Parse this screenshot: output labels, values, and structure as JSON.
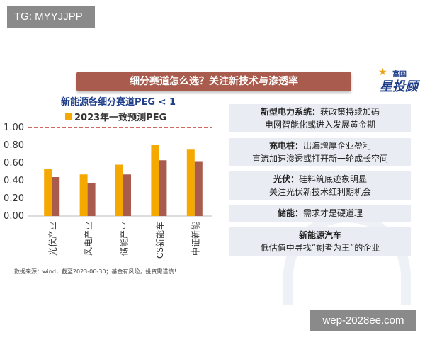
{
  "watermark_top": "TG: MYYJJPP",
  "watermark_bottom": "wep-2028ee.com",
  "banner_title": "细分赛道怎么选？关注新技术与渗透率",
  "logo": {
    "small": "富国",
    "main": "星投顾"
  },
  "chart_data": {
    "type": "bar",
    "title": "新能源各细分赛道PEG < 1",
    "categories": [
      "光伏产业",
      "风电产业",
      "储能产业",
      "CS新能车",
      "中证新能"
    ],
    "series": [
      {
        "name": "2023年一致预测PEG",
        "values": [
          0.53,
          0.47,
          0.58,
          0.8,
          0.75
        ],
        "color": "#f5a800"
      },
      {
        "values": [
          0.44,
          0.37,
          0.47,
          0.63,
          0.62
        ],
        "color": "#a95c4d"
      }
    ],
    "ylim": [
      0,
      1.0
    ],
    "yticks": [
      "0.00",
      "0.20",
      "0.40",
      "0.60",
      "0.80",
      "1.00"
    ],
    "reference_line": 1.0,
    "grid": false,
    "legend_position": "top"
  },
  "source_note": "数据来源：wind，截至2023-06-30；基金有风险，投资需谨慎！",
  "info_boxes": [
    {
      "label": "新型电力系统：",
      "line1": "获政策持续加码",
      "line2": "电网智能化或进入发展黄金期"
    },
    {
      "label": "充电桩：",
      "line1": "出海增厚企业盈利",
      "line2": "直流加速渗透或打开新一轮成长空间"
    },
    {
      "label": "光伏：",
      "line1": "硅料筑底迹象明显",
      "line2": "关注光伏新技术红利期机会"
    },
    {
      "label": "储能：",
      "line1": "需求才是硬道理",
      "line2": ""
    },
    {
      "label": "新能源汽车",
      "line1": "",
      "line2": "低估值中寻找“剩者为王”的企业"
    }
  ]
}
